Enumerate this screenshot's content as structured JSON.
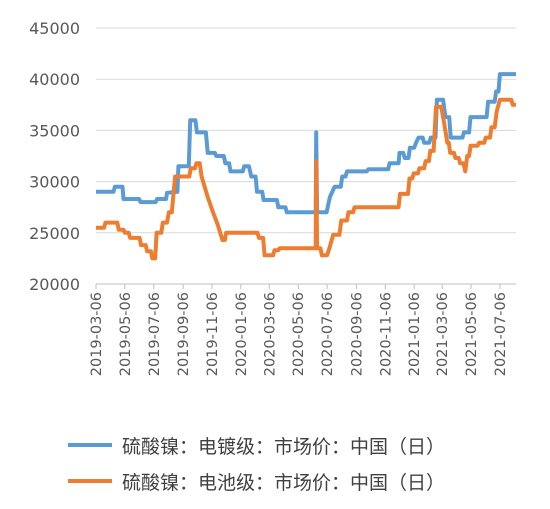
{
  "chart_data": {
    "type": "line",
    "title": "",
    "xlabel": "",
    "ylabel": "",
    "ylim": [
      20000,
      45000
    ],
    "yticks": [
      "20000",
      "25000",
      "30000",
      "35000",
      "40000",
      "45000"
    ],
    "xticks": [
      "2019-03-06",
      "2019-05-06",
      "2019-07-06",
      "2019-09-06",
      "2019-11-06",
      "2020-01-06",
      "2020-03-06",
      "2020-05-06",
      "2020-07-06",
      "2020-09-06",
      "2020-11-06",
      "2021-01-06",
      "2021-03-06",
      "2021-05-06",
      "2021-07-06"
    ],
    "grid": true,
    "legend_position": "bottom",
    "series": [
      {
        "name": "硫酸镍：电镀级：市场价：中国（日）",
        "color": "#5B9BD5",
        "points": [
          [
            "2019-03-06",
            29000
          ],
          [
            "2019-04-12",
            29000
          ],
          [
            "2019-04-15",
            29500
          ],
          [
            "2019-05-01",
            29500
          ],
          [
            "2019-05-03",
            28300
          ],
          [
            "2019-06-05",
            28300
          ],
          [
            "2019-06-08",
            28000
          ],
          [
            "2019-07-10",
            28000
          ],
          [
            "2019-07-13",
            28300
          ],
          [
            "2019-08-01",
            28300
          ],
          [
            "2019-08-03",
            28900
          ],
          [
            "2019-08-25",
            29000
          ],
          [
            "2019-08-27",
            31500
          ],
          [
            "2019-09-18",
            31500
          ],
          [
            "2019-09-21",
            36000
          ],
          [
            "2019-10-02",
            36000
          ],
          [
            "2019-10-05",
            34800
          ],
          [
            "2019-10-24",
            34800
          ],
          [
            "2019-10-28",
            32800
          ],
          [
            "2019-11-12",
            32800
          ],
          [
            "2019-11-15",
            32500
          ],
          [
            "2019-12-01",
            32500
          ],
          [
            "2019-12-04",
            31800
          ],
          [
            "2019-12-12",
            31800
          ],
          [
            "2019-12-15",
            31000
          ],
          [
            "2020-01-10",
            31000
          ],
          [
            "2020-01-13",
            31500
          ],
          [
            "2020-01-23",
            31500
          ],
          [
            "2020-01-28",
            30500
          ],
          [
            "2020-02-06",
            30500
          ],
          [
            "2020-02-09",
            29000
          ],
          [
            "2020-02-20",
            29000
          ],
          [
            "2020-02-23",
            28200
          ],
          [
            "2020-03-22",
            28200
          ],
          [
            "2020-03-25",
            27500
          ],
          [
            "2020-04-09",
            27500
          ],
          [
            "2020-04-12",
            27000
          ],
          [
            "2020-06-12",
            27000
          ],
          [
            "2020-06-13",
            34800
          ],
          [
            "2020-06-15",
            27000
          ],
          [
            "2020-07-05",
            27000
          ],
          [
            "2020-07-12",
            28500
          ],
          [
            "2020-07-22",
            29500
          ],
          [
            "2020-08-04",
            29500
          ],
          [
            "2020-08-07",
            30500
          ],
          [
            "2020-08-14",
            30500
          ],
          [
            "2020-08-17",
            31000
          ],
          [
            "2020-09-28",
            31000
          ],
          [
            "2020-10-01",
            31200
          ],
          [
            "2020-11-12",
            31200
          ],
          [
            "2020-11-15",
            31800
          ],
          [
            "2020-12-04",
            31800
          ],
          [
            "2020-12-06",
            32800
          ],
          [
            "2020-12-14",
            32800
          ],
          [
            "2020-12-17",
            32300
          ],
          [
            "2020-12-25",
            32300
          ],
          [
            "2020-12-28",
            33300
          ],
          [
            "2021-01-06",
            33300
          ],
          [
            "2021-01-10",
            33800
          ],
          [
            "2021-01-15",
            34300
          ],
          [
            "2021-01-24",
            34300
          ],
          [
            "2021-01-27",
            33800
          ],
          [
            "2021-02-07",
            33800
          ],
          [
            "2021-02-10",
            34300
          ],
          [
            "2021-02-20",
            34300
          ],
          [
            "2021-02-23",
            38000
          ],
          [
            "2021-03-08",
            38000
          ],
          [
            "2021-03-13",
            36300
          ],
          [
            "2021-03-21",
            36300
          ],
          [
            "2021-03-24",
            34300
          ],
          [
            "2021-04-18",
            34300
          ],
          [
            "2021-04-21",
            34800
          ],
          [
            "2021-05-02",
            34800
          ],
          [
            "2021-05-05",
            36300
          ],
          [
            "2021-06-08",
            36300
          ],
          [
            "2021-06-11",
            37800
          ],
          [
            "2021-06-25",
            37800
          ],
          [
            "2021-06-28",
            38800
          ],
          [
            "2021-07-03",
            38800
          ],
          [
            "2021-07-06",
            40500
          ],
          [
            "2021-08-09",
            40500
          ]
        ]
      },
      {
        "name": "硫酸镍：电池级：市场价：中国（日）",
        "color": "#ED7D31",
        "points": [
          [
            "2019-03-06",
            25500
          ],
          [
            "2019-03-23",
            25500
          ],
          [
            "2019-03-26",
            26000
          ],
          [
            "2019-04-20",
            26000
          ],
          [
            "2019-04-23",
            25300
          ],
          [
            "2019-05-03",
            25300
          ],
          [
            "2019-05-06",
            25000
          ],
          [
            "2019-05-14",
            25000
          ],
          [
            "2019-05-17",
            24500
          ],
          [
            "2019-06-06",
            24500
          ],
          [
            "2019-06-09",
            23800
          ],
          [
            "2019-06-19",
            23800
          ],
          [
            "2019-06-22",
            23200
          ],
          [
            "2019-06-30",
            23200
          ],
          [
            "2019-07-03",
            22500
          ],
          [
            "2019-07-09",
            22500
          ],
          [
            "2019-07-12",
            25000
          ],
          [
            "2019-07-22",
            25000
          ],
          [
            "2019-07-25",
            26000
          ],
          [
            "2019-08-03",
            26000
          ],
          [
            "2019-08-07",
            27000
          ],
          [
            "2019-08-13",
            27000
          ],
          [
            "2019-08-20",
            30500
          ],
          [
            "2019-09-19",
            30500
          ],
          [
            "2019-09-22",
            31300
          ],
          [
            "2019-10-01",
            31300
          ],
          [
            "2019-10-04",
            31800
          ],
          [
            "2019-10-11",
            31800
          ],
          [
            "2019-10-15",
            30500
          ],
          [
            "2019-10-28",
            28500
          ],
          [
            "2019-11-08",
            27000
          ],
          [
            "2019-11-18",
            25800
          ],
          [
            "2019-11-28",
            24300
          ],
          [
            "2019-12-03",
            24300
          ],
          [
            "2019-12-06",
            25000
          ],
          [
            "2020-02-10",
            25000
          ],
          [
            "2020-02-13",
            24500
          ],
          [
            "2020-02-22",
            24500
          ],
          [
            "2020-02-25",
            22800
          ],
          [
            "2020-03-14",
            22800
          ],
          [
            "2020-03-17",
            23300
          ],
          [
            "2020-03-25",
            23300
          ],
          [
            "2020-03-28",
            23500
          ],
          [
            "2020-06-12",
            23500
          ],
          [
            "2020-06-13",
            32000
          ],
          [
            "2020-06-15",
            23500
          ],
          [
            "2020-06-22",
            23500
          ],
          [
            "2020-06-25",
            22800
          ],
          [
            "2020-07-06",
            22800
          ],
          [
            "2020-07-11",
            23500
          ],
          [
            "2020-07-19",
            24800
          ],
          [
            "2020-08-01",
            24800
          ],
          [
            "2020-08-05",
            26200
          ],
          [
            "2020-08-17",
            26200
          ],
          [
            "2020-08-20",
            27000
          ],
          [
            "2020-08-30",
            27000
          ],
          [
            "2020-09-02",
            27500
          ],
          [
            "2020-12-04",
            27500
          ],
          [
            "2020-12-07",
            28800
          ],
          [
            "2020-12-24",
            28800
          ],
          [
            "2020-12-27",
            30300
          ],
          [
            "2021-01-02",
            30300
          ],
          [
            "2021-01-05",
            30800
          ],
          [
            "2021-01-14",
            30800
          ],
          [
            "2021-01-17",
            31300
          ],
          [
            "2021-01-27",
            31300
          ],
          [
            "2021-01-30",
            32000
          ],
          [
            "2021-02-06",
            32000
          ],
          [
            "2021-02-09",
            33000
          ],
          [
            "2021-02-16",
            33000
          ],
          [
            "2021-02-21",
            37300
          ],
          [
            "2021-03-04",
            37300
          ],
          [
            "2021-03-10",
            35800
          ],
          [
            "2021-03-17",
            33800
          ],
          [
            "2021-03-20",
            33800
          ],
          [
            "2021-03-23",
            32800
          ],
          [
            "2021-03-31",
            32800
          ],
          [
            "2021-04-03",
            32300
          ],
          [
            "2021-04-10",
            32300
          ],
          [
            "2021-04-13",
            31800
          ],
          [
            "2021-04-20",
            31800
          ],
          [
            "2021-04-24",
            31000
          ],
          [
            "2021-04-28",
            32500
          ],
          [
            "2021-05-02",
            32500
          ],
          [
            "2021-05-05",
            33500
          ],
          [
            "2021-05-20",
            33500
          ],
          [
            "2021-05-23",
            33800
          ],
          [
            "2021-06-03",
            33800
          ],
          [
            "2021-06-06",
            34300
          ],
          [
            "2021-06-15",
            34300
          ],
          [
            "2021-06-18",
            35300
          ],
          [
            "2021-06-25",
            35300
          ],
          [
            "2021-06-29",
            36800
          ],
          [
            "2021-07-03",
            37500
          ],
          [
            "2021-07-06",
            38000
          ],
          [
            "2021-07-30",
            38000
          ],
          [
            "2021-08-02",
            37500
          ],
          [
            "2021-08-09",
            37500
          ]
        ]
      }
    ]
  }
}
